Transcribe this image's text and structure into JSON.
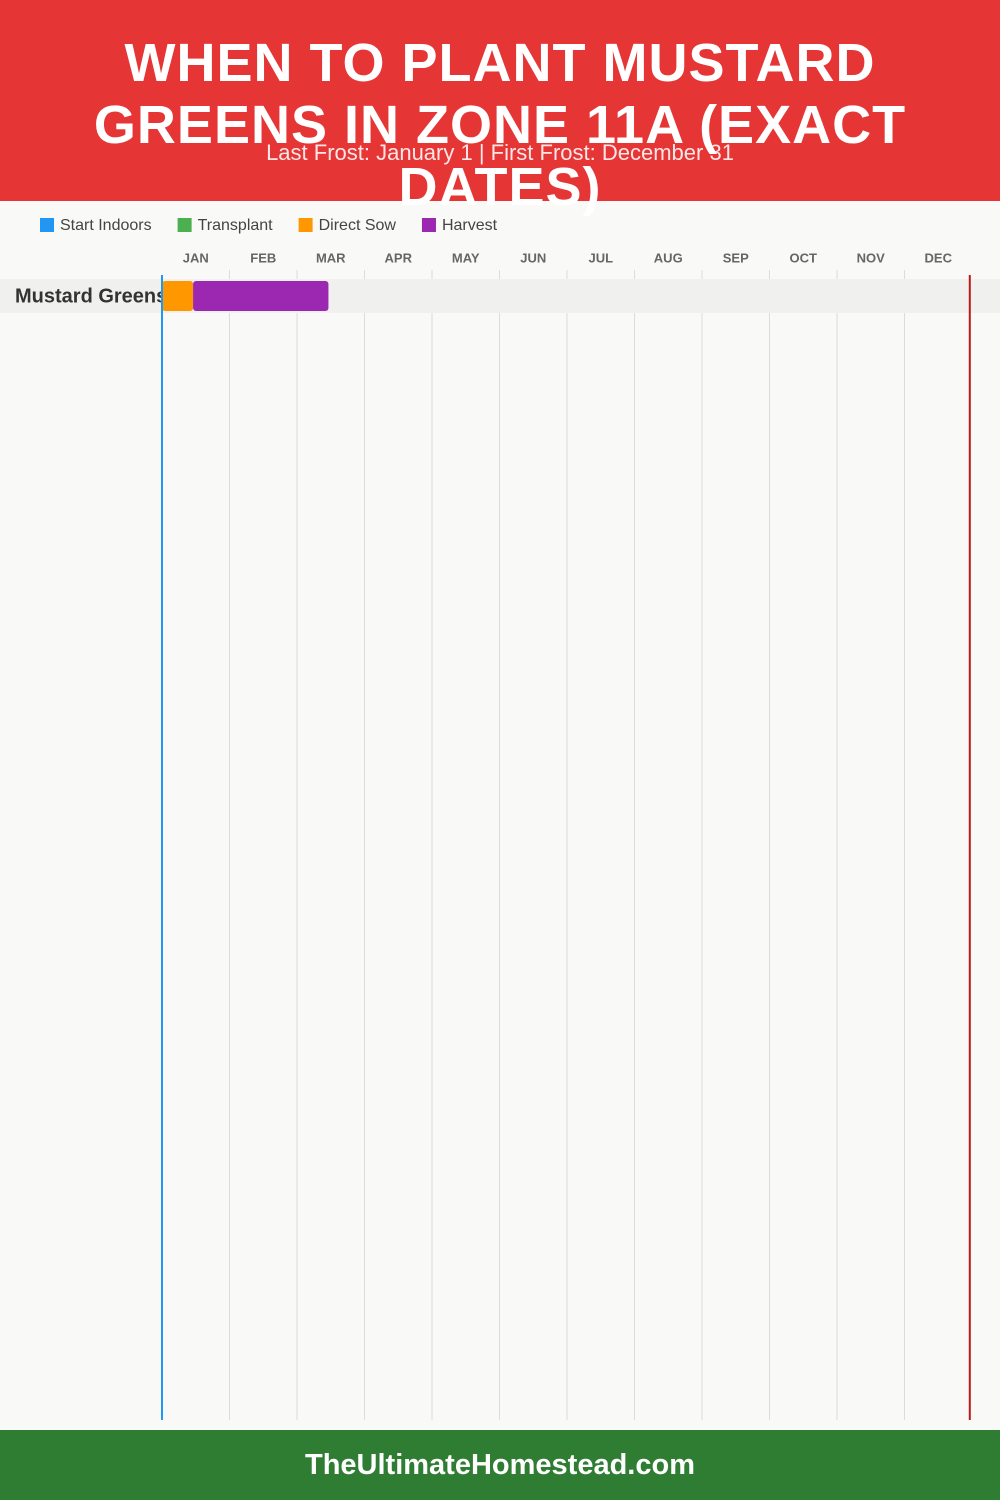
{
  "chart_data": {
    "type": "gantt",
    "title": "WHEN TO PLANT MUSTARD GREENS IN ZONE 11A (EXACT DATES)",
    "subtitle": "Last Frost: January 1 | First Frost: December 31",
    "legend": [
      {
        "name": "Start Indoors",
        "color": "#2196f3"
      },
      {
        "name": "Transplant",
        "color": "#4caf50"
      },
      {
        "name": "Direct Sow",
        "color": "#ff9800"
      },
      {
        "name": "Harvest",
        "color": "#9c27b0"
      }
    ],
    "categories": [
      "JAN",
      "FEB",
      "MAR",
      "APR",
      "MAY",
      "JUN",
      "JUL",
      "AUG",
      "SEP",
      "OCT",
      "NOV",
      "DEC"
    ],
    "xlim": [
      1,
      366
    ],
    "rows": [
      {
        "name": "Mustard Greens",
        "bars": [
          {
            "series": 2,
            "start": 1,
            "end": 15
          },
          {
            "series": 3,
            "start": 15,
            "end": 76
          }
        ]
      }
    ],
    "markers": [
      {
        "day": 1,
        "color": "#2196f3"
      },
      {
        "day": 365,
        "color": "#b71c1c"
      }
    ],
    "grid": true
  },
  "footer": "TheUltimateHomestead.com"
}
